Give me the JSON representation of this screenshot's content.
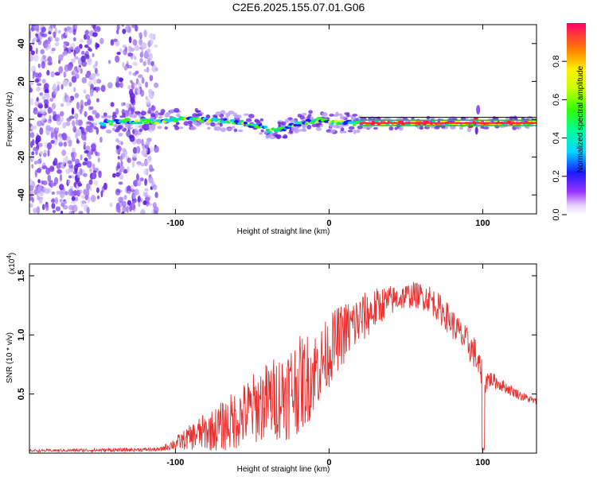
{
  "title": "C2E6.2025.155.07.01.G06",
  "colors": {
    "background": "#ffffff",
    "snr_line": "#e8302f",
    "scatter_purple": "#7a3ce8",
    "track_red": "#ff1e3c",
    "track_green": "#20c040"
  },
  "chart_data": [
    {
      "id": "spectrogram",
      "type": "heatmap",
      "title": "C2E6.2025.155.07.01.G06",
      "xlabel": "Height of straight line (km)",
      "ylabel": "Frequency (Hz)",
      "xlim": [
        -195,
        135
      ],
      "ylim": [
        -50,
        50
      ],
      "xticks": [
        -100,
        0,
        100
      ],
      "xtick_labels": [
        "-100",
        "0",
        "100"
      ],
      "yticks": [
        -40,
        -20,
        0,
        20,
        40
      ],
      "ytick_labels": [
        "-40",
        "-20",
        "0",
        "20",
        "40"
      ],
      "colorbar": {
        "label": "Normalized spectral amplitude",
        "range": [
          0,
          1
        ],
        "ticks": [
          0,
          0.2,
          0.4,
          0.6,
          0.8
        ],
        "tick_labels": [
          "0.0",
          "0.2",
          "0.4",
          "0.6",
          "0.8"
        ]
      },
      "track_center_hz": {
        "x": [
          -148,
          -130,
          -112,
          -100,
          -85,
          -70,
          -55,
          -45,
          -38,
          -30,
          -22,
          -12,
          -5,
          0,
          5,
          15,
          30,
          50,
          70,
          85,
          92,
          96,
          100,
          110,
          135
        ],
        "y": [
          -2,
          -1,
          -1,
          0,
          0,
          -1,
          -2,
          -4,
          -6,
          -5,
          -3,
          -1,
          0,
          -2,
          -2,
          -2,
          -2,
          -2,
          -2,
          -2,
          -3,
          0,
          -2,
          -2,
          -2
        ]
      },
      "noise_region_x": [
        -195,
        -112
      ],
      "noise_gap_x": [
        -150,
        -138
      ]
    },
    {
      "id": "snr",
      "type": "line",
      "title": "",
      "xlabel": "Height of straight line (km)",
      "ylabel": "SNR (10 * v/v)",
      "y_multiplier": "(x10",
      "y_multiplier_exp": "4",
      "y_multiplier_close": ")",
      "xlim": [
        -195,
        135
      ],
      "ylim": [
        0,
        16000
      ],
      "xticks": [
        -100,
        0,
        100
      ],
      "xtick_labels": [
        "-100",
        "0",
        "100"
      ],
      "yticks": [
        5000,
        10000,
        15000
      ],
      "ytick_labels": [
        "0.5",
        "1.0",
        "1.5"
      ],
      "envelope": {
        "x": [
          -195,
          -140,
          -110,
          -95,
          -85,
          -75,
          -65,
          -55,
          -45,
          -35,
          -25,
          -15,
          -5,
          5,
          15,
          25,
          35,
          45,
          55,
          65,
          75,
          85,
          95,
          100,
          105,
          115,
          125,
          135
        ],
        "base": [
          200,
          250,
          300,
          1000,
          1500,
          1800,
          2300,
          3000,
          3800,
          4300,
          4900,
          5800,
          7300,
          9300,
          10500,
          11500,
          12500,
          13000,
          13300,
          13000,
          11700,
          10000,
          8300,
          6000,
          6200,
          5500,
          4800,
          4300
        ],
        "amp": [
          100,
          150,
          150,
          800,
          1400,
          1800,
          2400,
          2800,
          3200,
          3600,
          4200,
          4000,
          3200,
          2800,
          2500,
          2000,
          1500,
          1100,
          1100,
          1200,
          1300,
          1300,
          1400,
          1500,
          700,
          500,
          400,
          300
        ]
      }
    }
  ]
}
